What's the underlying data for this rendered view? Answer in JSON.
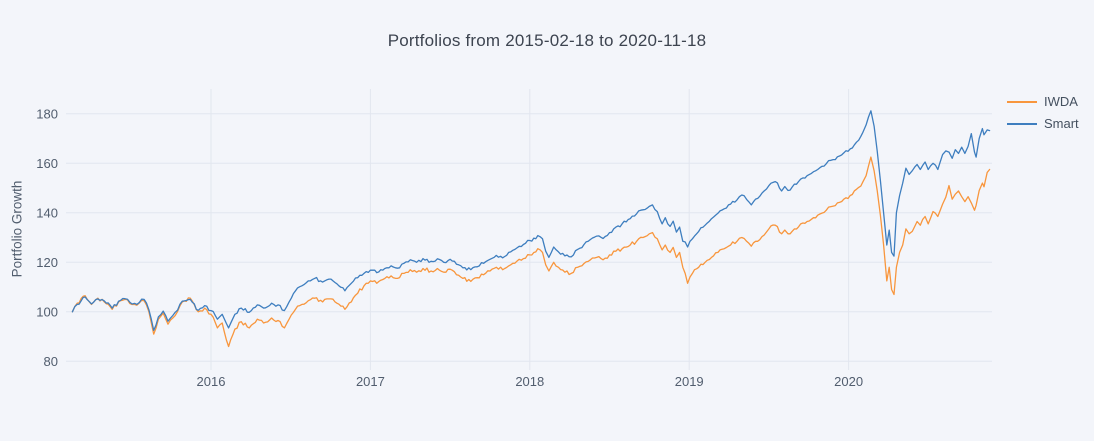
{
  "page": {
    "background": "#f3f5fa"
  },
  "chart_data": {
    "type": "line",
    "title": "Portfolios from 2015-02-18 to 2020-11-18",
    "xlabel": "",
    "ylabel": "Portfolio Growth",
    "x_range": [
      2015.09,
      2020.9
    ],
    "y_range": [
      76.5,
      190.0
    ],
    "x_ticks": [
      2016,
      2017,
      2018,
      2019,
      2020
    ],
    "x_tick_labels": [
      "2016",
      "2017",
      "2018",
      "2019",
      "2020"
    ],
    "y_ticks": [
      80,
      100,
      120,
      140,
      160,
      180
    ],
    "y_tick_labels": [
      "80",
      "100",
      "120",
      "140",
      "160",
      "180"
    ],
    "grid": true,
    "grid_color": "#e2e6ef",
    "tick_color": "#515d6e",
    "title_color": "#3d4450",
    "legend": {
      "position": "top-right-outside",
      "entries": [
        "IWDA",
        "Smart"
      ]
    },
    "x": [
      2015.13,
      2015.16,
      2015.21,
      2015.25,
      2015.29,
      2015.33,
      2015.38,
      2015.42,
      2015.46,
      2015.52,
      2015.58,
      2015.61,
      2015.64,
      2015.67,
      2015.7,
      2015.73,
      2015.76,
      2015.82,
      2015.87,
      2015.92,
      2015.96,
      2016.0,
      2016.04,
      2016.07,
      2016.11,
      2016.15,
      2016.19,
      2016.24,
      2016.29,
      2016.33,
      2016.38,
      2016.42,
      2016.46,
      2016.49,
      2016.53,
      2016.57,
      2016.61,
      2016.65,
      2016.7,
      2016.74,
      2016.79,
      2016.84,
      2016.88,
      2016.92,
      2016.96,
      2017.0,
      2017.04,
      2017.09,
      2017.13,
      2017.17,
      2017.21,
      2017.25,
      2017.29,
      2017.33,
      2017.38,
      2017.42,
      2017.46,
      2017.5,
      2017.54,
      2017.58,
      2017.63,
      2017.67,
      2017.71,
      2017.75,
      2017.79,
      2017.83,
      2017.88,
      2017.92,
      2017.96,
      2018.0,
      2018.05,
      2018.08,
      2018.1,
      2018.12,
      2018.15,
      2018.18,
      2018.22,
      2018.26,
      2018.3,
      2018.34,
      2018.38,
      2018.42,
      2018.46,
      2018.5,
      2018.54,
      2018.58,
      2018.63,
      2018.67,
      2018.71,
      2018.75,
      2018.77,
      2018.8,
      2018.83,
      2018.85,
      2018.88,
      2018.9,
      2018.92,
      2018.94,
      2018.96,
      2018.99,
      2019.02,
      2019.06,
      2019.1,
      2019.14,
      2019.18,
      2019.22,
      2019.26,
      2019.3,
      2019.33,
      2019.36,
      2019.39,
      2019.43,
      2019.47,
      2019.5,
      2019.54,
      2019.58,
      2019.6,
      2019.62,
      2019.66,
      2019.7,
      2019.74,
      2019.78,
      2019.82,
      2019.86,
      2019.89,
      2019.93,
      2019.97,
      2020.01,
      2020.05,
      2020.09,
      2020.11,
      2020.14,
      2020.16,
      2020.18,
      2020.2,
      2020.22,
      2020.24,
      2020.255,
      2020.27,
      2020.285,
      2020.3,
      2020.32,
      2020.34,
      2020.36,
      2020.38,
      2020.4,
      2020.43,
      2020.45,
      2020.48,
      2020.5,
      2020.53,
      2020.56,
      2020.59,
      2020.61,
      2020.63,
      2020.65,
      2020.67,
      2020.69,
      2020.71,
      2020.73,
      2020.75,
      2020.77,
      2020.79,
      2020.8,
      2020.82,
      2020.84,
      2020.85,
      2020.87,
      2020.885
    ],
    "series": [
      {
        "name": "IWDA",
        "color": "#f8963d",
        "values": [
          100,
          103.5,
          106.5,
          103,
          105.5,
          104,
          101,
          104,
          105,
          103,
          104.5,
          100,
          91,
          97,
          99.5,
          95,
          97.5,
          104,
          105.5,
          100,
          101.5,
          99,
          93.5,
          95.5,
          86,
          93,
          96,
          93.5,
          97,
          95.5,
          97.5,
          96.5,
          93.5,
          97,
          101,
          103,
          104.5,
          105.5,
          104,
          105.2,
          103.5,
          101,
          104,
          107.5,
          110.5,
          112.5,
          111.5,
          113.5,
          114.5,
          113.5,
          115.5,
          117,
          116,
          117.5,
          116.5,
          117.5,
          116,
          117.2,
          115,
          113.5,
          112.3,
          113.8,
          115,
          116.5,
          118,
          117,
          119,
          120.5,
          121.5,
          123,
          125.5,
          124,
          119,
          116.5,
          120,
          118,
          116,
          115.5,
          118,
          119.5,
          121,
          122,
          121,
          123,
          124.5,
          125.5,
          127,
          128.5,
          130,
          131.5,
          132,
          129.5,
          125,
          127,
          124,
          126,
          122,
          124,
          118,
          111.5,
          115.5,
          118,
          120,
          122,
          124,
          125.5,
          127,
          128.5,
          130,
          128.5,
          126.5,
          128.5,
          131,
          133.5,
          135,
          131.5,
          133,
          131.5,
          133.5,
          135.5,
          136.5,
          138,
          139.5,
          141,
          142.5,
          144,
          145.5,
          147,
          149.5,
          152.5,
          155,
          162.5,
          157,
          149,
          139,
          127,
          112.5,
          118,
          109,
          107,
          118,
          124,
          127,
          133.5,
          131.5,
          132.5,
          136.5,
          135,
          138.5,
          135.5,
          140.5,
          138.5,
          143.5,
          146.3,
          151,
          145.5,
          147.5,
          148.8,
          146.5,
          144.5,
          146.5,
          144,
          141,
          143,
          149,
          152,
          150.5,
          156.3,
          157.5
        ]
      },
      {
        "name": "Smart",
        "color": "#3e7ebf",
        "values": [
          100,
          103,
          106,
          103.2,
          105.2,
          104.4,
          101.5,
          104.3,
          105.3,
          103.4,
          105,
          100.8,
          92.5,
          98,
          100.3,
          96.2,
          98.5,
          104.3,
          105,
          100.6,
          102.5,
          100.5,
          97,
          99,
          93.5,
          99,
          101.5,
          99.8,
          102.8,
          101.5,
          103.5,
          102.8,
          100.5,
          104,
          108.5,
          110.5,
          112.5,
          113.5,
          112,
          113.2,
          111.3,
          108.5,
          111.5,
          113.8,
          115.5,
          116.8,
          115.8,
          117.5,
          118.6,
          117.6,
          119.6,
          121,
          120,
          121.5,
          120.4,
          121.4,
          120,
          121.2,
          119.2,
          117.8,
          117,
          118.2,
          119.6,
          121.2,
          122.8,
          121.8,
          124.2,
          125.8,
          127.2,
          128.8,
          130.8,
          129.5,
          124.5,
          122,
          126.2,
          124.2,
          122.6,
          122.2,
          125.2,
          127.2,
          129.2,
          130.6,
          129.6,
          132,
          134.2,
          135.6,
          137.6,
          139.6,
          141.2,
          142.6,
          143.2,
          140.5,
          135.5,
          138,
          134.5,
          136.6,
          132.2,
          134.2,
          128.5,
          126.2,
          129.5,
          132.5,
          135,
          137.6,
          139.8,
          141.6,
          143.5,
          145.2,
          147.2,
          145.4,
          143.2,
          145.8,
          148.8,
          151,
          152.6,
          148.8,
          150.6,
          149,
          151.6,
          153.6,
          155,
          156.6,
          158.2,
          159.8,
          161.2,
          162.6,
          164.2,
          165.8,
          168.5,
          172.5,
          175.5,
          181.2,
          175,
          165,
          153,
          140,
          127,
          133,
          124,
          122.5,
          140,
          147,
          152,
          158,
          155.5,
          157,
          159.5,
          157.5,
          160.5,
          157.5,
          160,
          157.5,
          163.5,
          165,
          164.5,
          162,
          165.5,
          164,
          166.5,
          164,
          166.8,
          172,
          164.5,
          162.5,
          170,
          174,
          171.5,
          173.5,
          173.2
        ]
      }
    ]
  }
}
